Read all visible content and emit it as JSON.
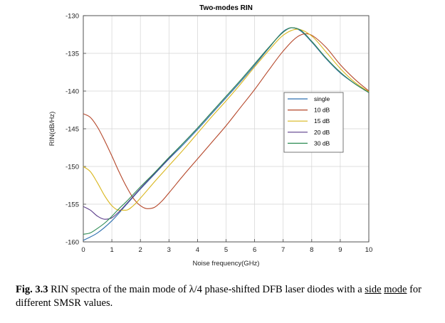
{
  "chart_data": {
    "type": "line",
    "title": "Two-modes RIN",
    "xlabel": "Noise frequency(GHz)",
    "ylabel": "RIN(dB/Hz)",
    "xlim": [
      0,
      10
    ],
    "ylim": [
      -160,
      -130
    ],
    "xticks": [
      "0",
      "1",
      "2",
      "3",
      "4",
      "5",
      "6",
      "7",
      "8",
      "9",
      "10"
    ],
    "yticks": [
      "-130",
      "-135",
      "-140",
      "-145",
      "-150",
      "-155",
      "-160"
    ],
    "grid": true,
    "legend_position": "right",
    "series": [
      {
        "name": "single",
        "color": "#2f6fb0",
        "x": [
          0,
          0.5,
          1,
          1.5,
          2,
          2.5,
          3,
          3.5,
          4,
          4.5,
          5,
          5.5,
          6,
          6.5,
          7,
          7.3,
          7.6,
          8,
          8.5,
          9,
          9.5,
          10
        ],
        "y": [
          -159.8,
          -158.8,
          -157.2,
          -155.1,
          -153.0,
          -151.0,
          -149.0,
          -147.1,
          -145.1,
          -143.0,
          -140.9,
          -138.8,
          -136.6,
          -134.3,
          -132.1,
          -131.6,
          -132.0,
          -133.5,
          -135.7,
          -137.6,
          -139.0,
          -140.2
        ]
      },
      {
        "name": "10 dB",
        "color": "#b5472a",
        "x": [
          0,
          0.25,
          0.5,
          0.75,
          1,
          1.25,
          1.5,
          1.75,
          2,
          2.25,
          2.5,
          2.75,
          3,
          3.5,
          4,
          4.5,
          5,
          5.5,
          6,
          6.5,
          7,
          7.5,
          7.8,
          8,
          8.5,
          9,
          9.5,
          10
        ],
        "y": [
          -143.0,
          -143.5,
          -144.8,
          -146.6,
          -148.6,
          -150.7,
          -152.6,
          -154.2,
          -155.2,
          -155.6,
          -155.4,
          -154.6,
          -153.5,
          -151.2,
          -149.0,
          -146.8,
          -144.6,
          -142.2,
          -139.8,
          -137.2,
          -134.7,
          -132.8,
          -132.4,
          -132.6,
          -134.2,
          -136.5,
          -138.4,
          -140.0
        ]
      },
      {
        "name": "15 dB",
        "color": "#d9b61c",
        "x": [
          0,
          0.25,
          0.5,
          0.75,
          1,
          1.25,
          1.5,
          1.75,
          2,
          2.5,
          3,
          3.5,
          4,
          4.5,
          5,
          5.5,
          6,
          6.5,
          7,
          7.5,
          8,
          8.5,
          9,
          9.5,
          10
        ],
        "y": [
          -150.0,
          -150.7,
          -152.2,
          -153.9,
          -155.2,
          -155.8,
          -155.8,
          -155.2,
          -154.2,
          -152.0,
          -149.9,
          -147.8,
          -145.6,
          -143.4,
          -141.3,
          -139.1,
          -136.8,
          -134.6,
          -132.6,
          -131.8,
          -132.7,
          -134.8,
          -137.0,
          -138.8,
          -140.1
        ]
      },
      {
        "name": "20 dB",
        "color": "#5a3c8a",
        "x": [
          0,
          0.25,
          0.5,
          0.75,
          1,
          1.25,
          1.5,
          2,
          2.5,
          3,
          3.5,
          4,
          4.5,
          5,
          5.5,
          6,
          6.5,
          7,
          7.3,
          7.6,
          8,
          8.5,
          9,
          9.5,
          10
        ],
        "y": [
          -155.3,
          -155.8,
          -156.6,
          -157.0,
          -156.8,
          -156.0,
          -155.0,
          -152.9,
          -150.9,
          -148.9,
          -146.9,
          -144.9,
          -142.8,
          -140.7,
          -138.6,
          -136.4,
          -134.2,
          -132.2,
          -131.6,
          -131.9,
          -133.4,
          -135.6,
          -137.5,
          -139.0,
          -140.2
        ]
      },
      {
        "name": "30 dB",
        "color": "#2e8c55",
        "x": [
          0,
          0.25,
          0.5,
          0.75,
          1,
          1.25,
          1.5,
          2,
          2.5,
          3,
          3.5,
          4,
          4.5,
          5,
          5.5,
          6,
          6.5,
          7,
          7.3,
          7.6,
          8,
          8.5,
          9,
          9.5,
          10
        ],
        "y": [
          -159.0,
          -158.8,
          -158.2,
          -157.5,
          -156.6,
          -155.6,
          -154.7,
          -152.7,
          -150.8,
          -148.8,
          -146.9,
          -144.9,
          -142.8,
          -140.7,
          -138.6,
          -136.4,
          -134.2,
          -132.2,
          -131.6,
          -131.9,
          -133.4,
          -135.6,
          -137.5,
          -139.0,
          -140.2
        ]
      }
    ]
  },
  "caption": {
    "label": "Fig. 3.3",
    "text_before": " RIN spectra of the main mode of λ/4 phase-shifted DFB laser diodes with a ",
    "underlined_1": "side",
    "text_middle": " ",
    "underlined_2": "mode",
    "text_after": " for different SMSR values."
  }
}
